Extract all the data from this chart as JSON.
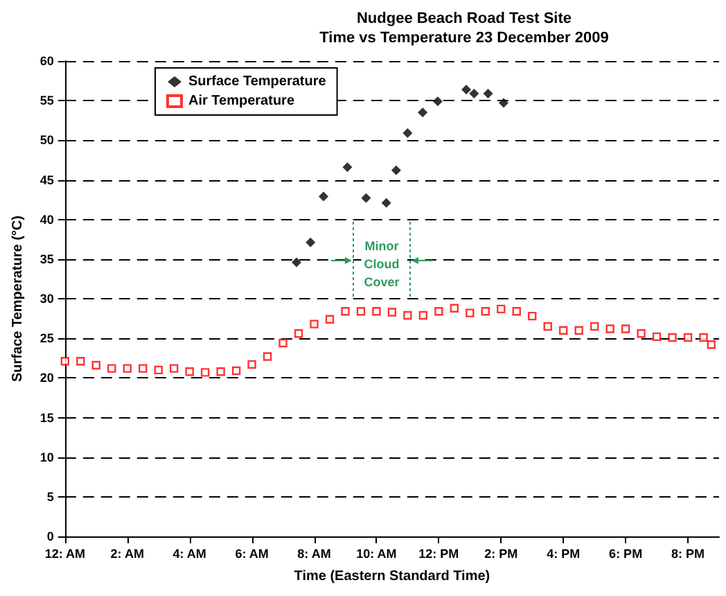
{
  "chart_data": {
    "type": "scatter",
    "title": "Nudgee Beach Road Test Site",
    "subtitle": "Time vs Temperature 23 December 2009",
    "xlabel": "Time (Eastern Standard Time)",
    "ylabel": "Surface Temperature (°C)",
    "xlim": [
      "2009-12-23T00:00",
      "2009-12-23T21:00"
    ],
    "xticks": [
      {
        "value": "2009-12-23T00:00",
        "label": "12: AM"
      },
      {
        "value": "2009-12-23T02:00",
        "label": "2: AM"
      },
      {
        "value": "2009-12-23T04:00",
        "label": "4: AM"
      },
      {
        "value": "2009-12-23T06:00",
        "label": "6: AM"
      },
      {
        "value": "2009-12-23T08:00",
        "label": "8: AM"
      },
      {
        "value": "2009-12-23T10:00",
        "label": "10: AM"
      },
      {
        "value": "2009-12-23T12:00",
        "label": "12: PM"
      },
      {
        "value": "2009-12-23T14:00",
        "label": "2: PM"
      },
      {
        "value": "2009-12-23T16:00",
        "label": "4: PM"
      },
      {
        "value": "2009-12-23T18:00",
        "label": "6: PM"
      },
      {
        "value": "2009-12-23T20:00",
        "label": "8: PM"
      }
    ],
    "ylim": [
      0,
      60
    ],
    "yticks": [
      0,
      5,
      10,
      15,
      20,
      25,
      30,
      35,
      40,
      45,
      50,
      55,
      60
    ],
    "grid": "y",
    "legend": "top left",
    "series": [
      {
        "name": "Surface Temperature",
        "color": "#000000",
        "marker": "diamond",
        "x": [
          "2009-12-23T07:26",
          "2009-12-23T07:53",
          "2009-12-23T08:18",
          "2009-12-23T09:04",
          "2009-12-23T09:40",
          "2009-12-23T10:19",
          "2009-12-23T10:38",
          "2009-12-23T11:00",
          "2009-12-23T11:29",
          "2009-12-23T11:58",
          "2009-12-23T12:53",
          "2009-12-23T13:08",
          "2009-12-23T13:35",
          "2009-12-23T14:05"
        ],
        "values": [
          34.6,
          37.1,
          42.9,
          46.6,
          42.7,
          42.1,
          46.2,
          50.9,
          53.5,
          54.9,
          56.4,
          55.9,
          55.9,
          54.7
        ]
      },
      {
        "name": "Air Temperature",
        "color": "#ff0000",
        "marker": "square",
        "x": [
          "2009-12-23T00:00",
          "2009-12-23T00:30",
          "2009-12-23T01:00",
          "2009-12-23T01:30",
          "2009-12-23T02:00",
          "2009-12-23T02:30",
          "2009-12-23T03:00",
          "2009-12-23T03:30",
          "2009-12-23T04:00",
          "2009-12-23T04:30",
          "2009-12-23T05:00",
          "2009-12-23T05:30",
          "2009-12-23T06:00",
          "2009-12-23T06:30",
          "2009-12-23T07:00",
          "2009-12-23T07:30",
          "2009-12-23T08:00",
          "2009-12-23T08:30",
          "2009-12-23T09:00",
          "2009-12-23T09:30",
          "2009-12-23T10:00",
          "2009-12-23T10:30",
          "2009-12-23T11:00",
          "2009-12-23T11:30",
          "2009-12-23T12:00",
          "2009-12-23T12:30",
          "2009-12-23T13:00",
          "2009-12-23T13:30",
          "2009-12-23T14:00",
          "2009-12-23T14:30",
          "2009-12-23T15:00",
          "2009-12-23T15:30",
          "2009-12-23T16:00",
          "2009-12-23T16:30",
          "2009-12-23T17:00",
          "2009-12-23T17:30",
          "2009-12-23T18:00",
          "2009-12-23T18:30",
          "2009-12-23T19:00",
          "2009-12-23T19:30",
          "2009-12-23T20:00",
          "2009-12-23T20:30",
          "2009-12-23T20:45"
        ],
        "values": [
          22.1,
          22.1,
          21.6,
          21.2,
          21.2,
          21.2,
          21.0,
          21.2,
          20.8,
          20.7,
          20.8,
          20.9,
          21.7,
          22.7,
          24.4,
          25.6,
          26.8,
          27.4,
          28.4,
          28.4,
          28.4,
          28.3,
          27.9,
          27.9,
          28.4,
          28.8,
          28.2,
          28.4,
          28.7,
          28.4,
          27.8,
          26.5,
          26.0,
          26.0,
          26.5,
          26.2,
          26.2,
          25.6,
          25.2,
          25.1,
          25.1,
          25.1,
          24.2
        ]
      }
    ],
    "annotations": [
      "Minor Cloud Cover"
    ]
  }
}
